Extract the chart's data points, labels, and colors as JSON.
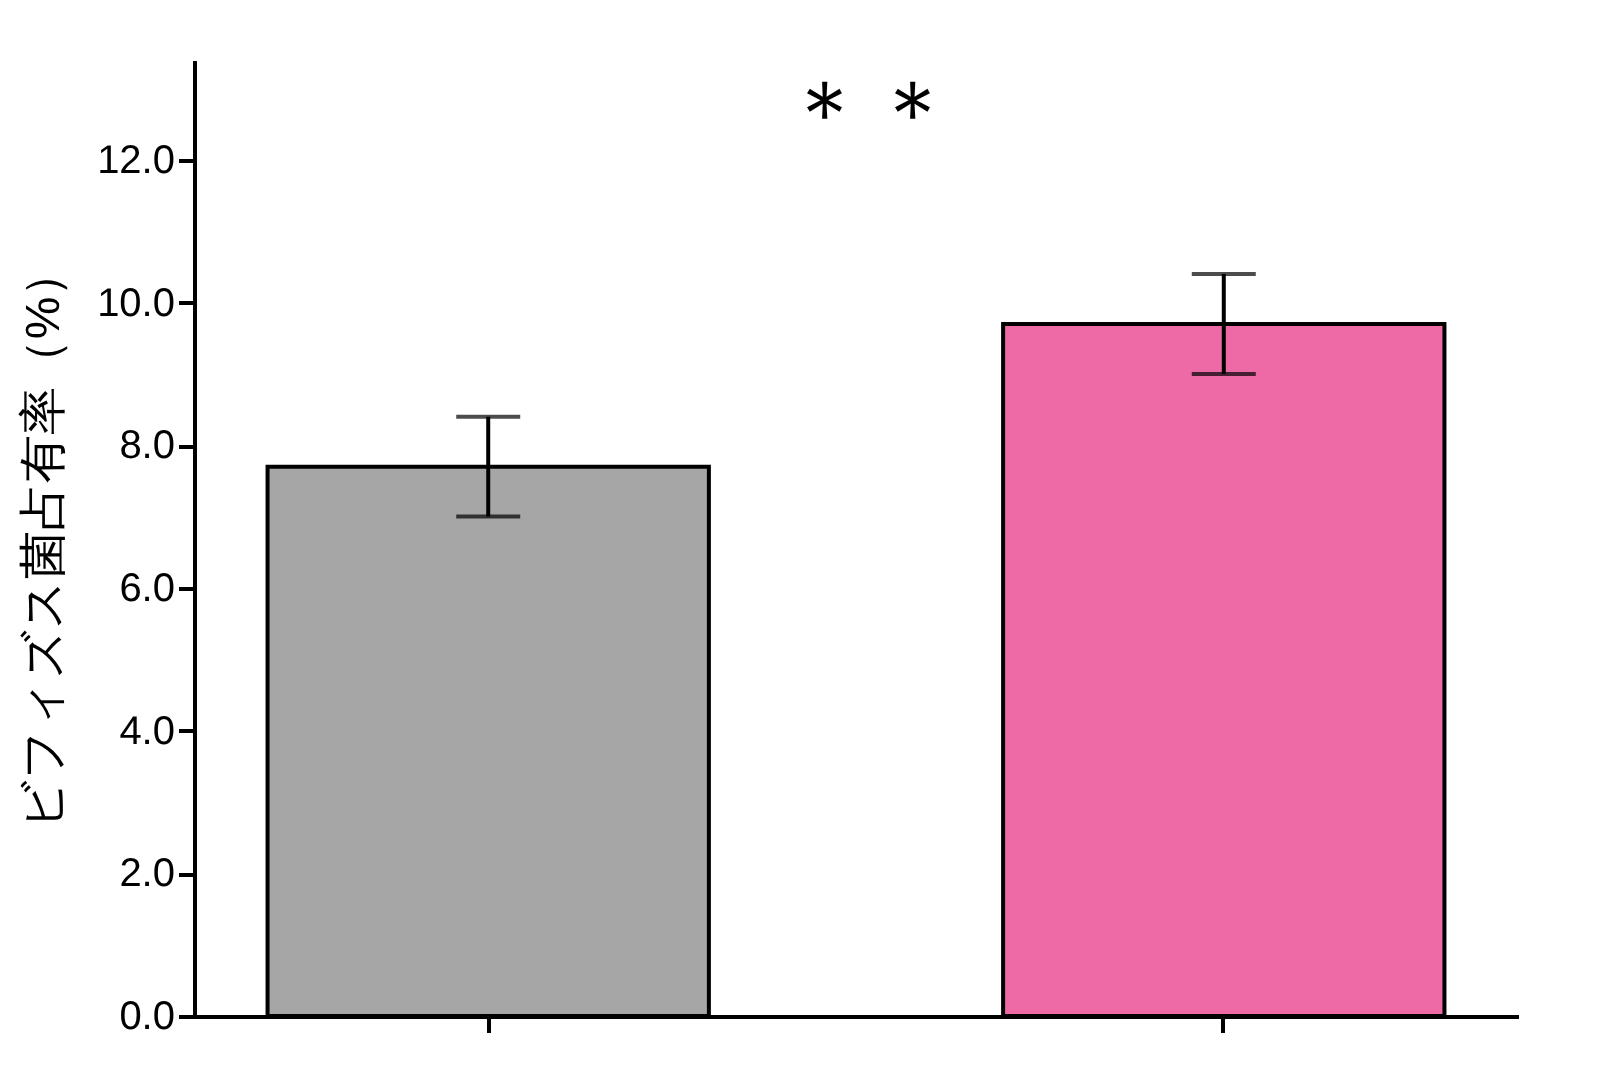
{
  "chart_data": {
    "type": "bar",
    "ylabel": "ビフィズス菌占有率（%）",
    "categories": [
      null,
      null
    ],
    "values": [
      7.7,
      9.7
    ],
    "colors": [
      "#a6a6a6",
      "#ee6aa7"
    ],
    "errors": [
      0.7,
      0.7
    ],
    "ylim": [
      0,
      13.4
    ],
    "yticks": [
      {
        "value": 0,
        "label": "0.0"
      },
      {
        "value": 2,
        "label": "2.0"
      },
      {
        "value": 4,
        "label": "4.0"
      },
      {
        "value": 6,
        "label": "6.0"
      },
      {
        "value": 8,
        "label": "8.0"
      },
      {
        "value": 10,
        "label": "10.0"
      },
      {
        "value": 12,
        "label": "12.0"
      }
    ],
    "annotations": [
      "＊＊"
    ],
    "grid": false,
    "legend": false
  }
}
